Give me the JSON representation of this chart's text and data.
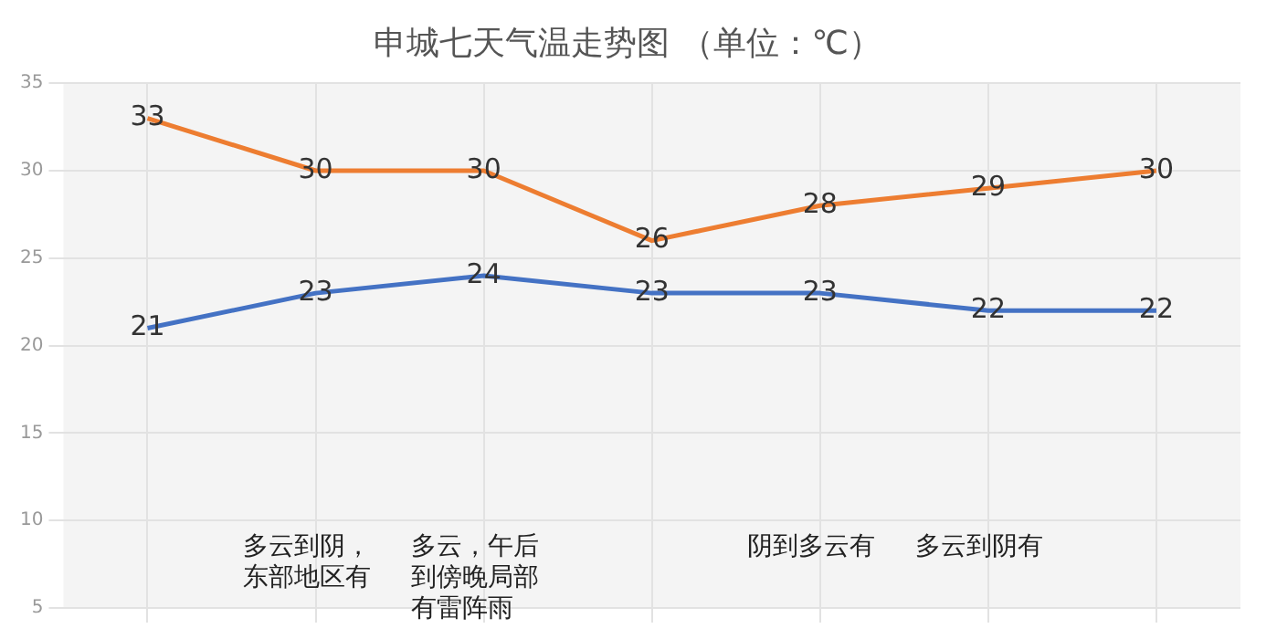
{
  "chart_data": {
    "type": "line",
    "title": "申城七天气温走势图 （单位：℃）",
    "categories": [
      null,
      null,
      null,
      null,
      null,
      null,
      null
    ],
    "series": [
      {
        "color": "#ed7d31",
        "values": [
          33,
          30,
          30,
          26,
          28,
          29,
          30
        ]
      },
      {
        "color": "#4472c4",
        "values": [
          21,
          23,
          24,
          23,
          23,
          22,
          22
        ]
      }
    ],
    "ylim": [
      5,
      35
    ],
    "yticks": [
      5,
      10,
      15,
      20,
      25,
      30,
      35
    ],
    "grid": true,
    "legend": false,
    "marker": "none",
    "line_style": "solid",
    "data_labels": true,
    "annotations": [
      "多云到阴，东部地区有",
      "多云，午后到傍晚局部有雷阵雨",
      "阴到多云有",
      "多云到阴有"
    ]
  }
}
